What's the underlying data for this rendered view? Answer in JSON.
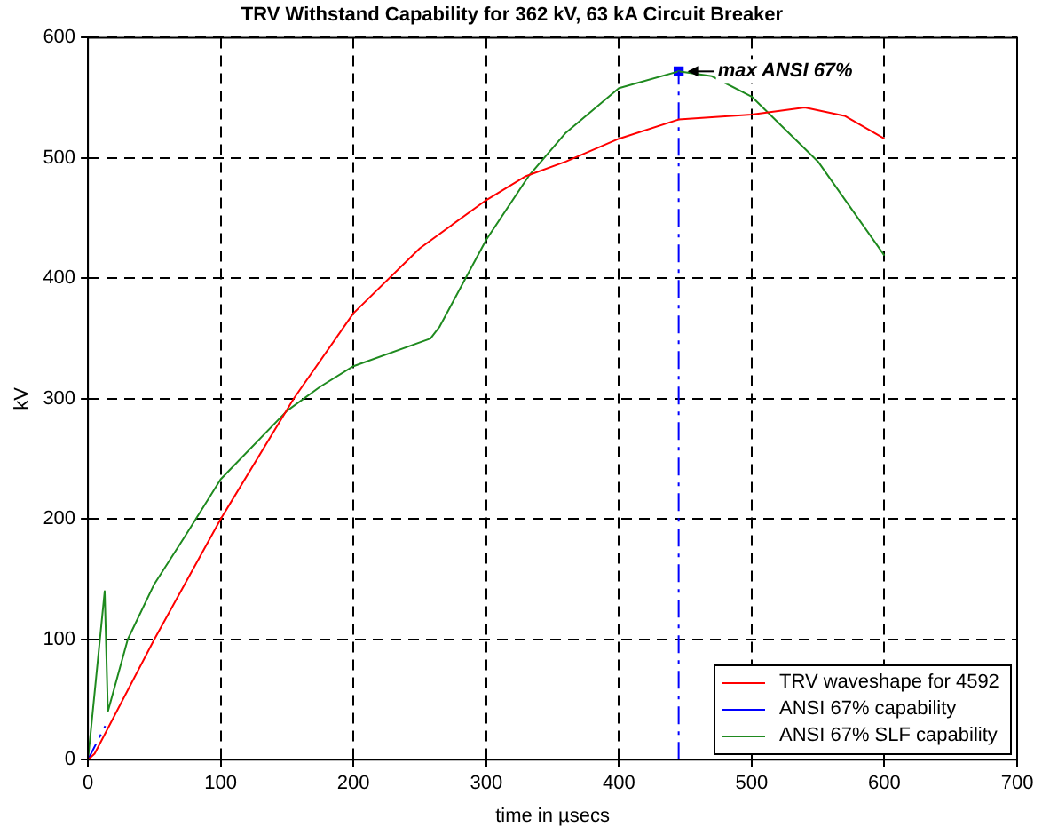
{
  "chart_data": {
    "type": "line",
    "title": "TRV Withstand Capability for 362 kV, 63 kA Circuit Breaker",
    "xlabel": "time in µsecs",
    "ylabel": "kV",
    "xlim": [
      0,
      700
    ],
    "xticks": [
      0,
      100,
      200,
      300,
      400,
      500,
      600,
      700
    ],
    "ylim": [
      0,
      600
    ],
    "yticks": [
      0,
      100,
      200,
      300,
      400,
      500,
      600
    ],
    "grid": true,
    "legend": "bottom right",
    "annotations": [
      {
        "text": "max ANSI 67%",
        "x": 445,
        "y": 572
      }
    ],
    "series": [
      {
        "name": "TRV waveshape for 4592",
        "color": "#ff0000",
        "x": [
          0,
          5,
          50,
          100,
          155,
          200,
          250,
          300,
          330,
          360,
          400,
          445,
          500,
          540,
          570,
          600
        ],
        "values": [
          0,
          5,
          100,
          200,
          300,
          371,
          425,
          465,
          485,
          497,
          516,
          532,
          536,
          542,
          535,
          516
        ]
      },
      {
        "name": "ANSI 67% capability",
        "color": "#0000ff",
        "line_style": "dashed",
        "x": [
          0,
          13,
          null,
          445,
          445
        ],
        "values": [
          0,
          28,
          null,
          0,
          572
        ]
      },
      {
        "name": "ANSI 67% SLF capability",
        "color": "#1f8a1f",
        "x": [
          0,
          12.6,
          15,
          30,
          50,
          75,
          100,
          150,
          175,
          200,
          258,
          265,
          300,
          332,
          360,
          400,
          445,
          470,
          500,
          550,
          600
        ],
        "values": [
          0,
          140,
          40,
          100,
          146,
          189,
          233,
          290,
          310,
          327,
          350,
          360,
          432,
          485,
          521,
          558,
          572,
          568,
          551,
          497,
          419
        ]
      },
      {
        "type": "scatter",
        "color": "#0000ff",
        "marker": "square",
        "x": [
          445
        ],
        "values": [
          572
        ]
      }
    ]
  }
}
